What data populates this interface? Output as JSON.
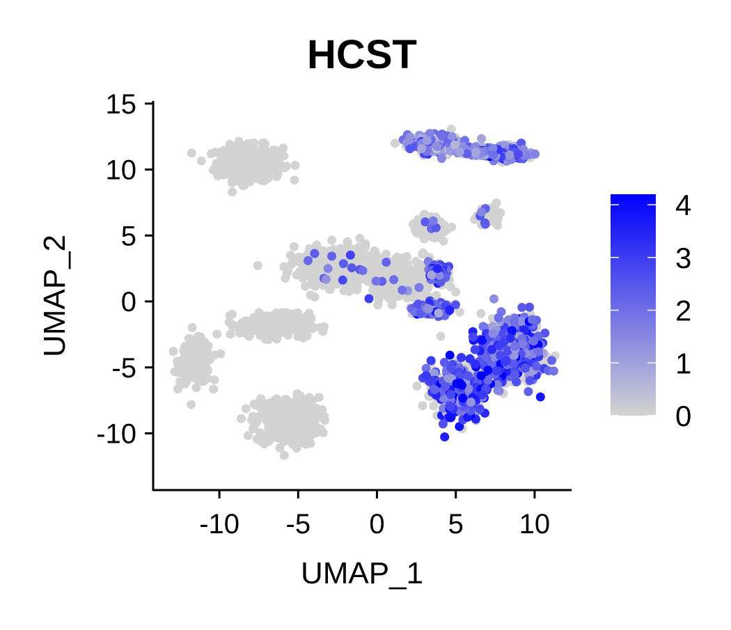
{
  "chart_data": {
    "type": "scatter",
    "title": "HCST",
    "xlabel": "UMAP_1",
    "ylabel": "UMAP_2",
    "xlim": [
      -14.2,
      12.3
    ],
    "ylim": [
      -14.3,
      15.2
    ],
    "xticks": [
      -10,
      -5,
      0,
      5,
      10
    ],
    "xtick_labels": [
      "-10",
      "-5",
      "0",
      "5",
      "10"
    ],
    "yticks": [
      -10,
      -5,
      0,
      5,
      10,
      15
    ],
    "ytick_labels": [
      "-10",
      "-5",
      "0",
      "5",
      "10",
      "15"
    ],
    "grid": false,
    "legend": {
      "placement": "right",
      "type": "colorbar",
      "min": 0,
      "max": 4.2,
      "ticks": [
        0,
        1,
        2,
        3,
        4
      ],
      "tick_labels": [
        "0",
        "1",
        "2",
        "3",
        "4"
      ]
    },
    "colors": {
      "low": "#d3d3d3",
      "high": "#0000ff"
    },
    "clusters": [
      {
        "center": [
          -8.1,
          10.5
        ],
        "spread": [
          2.1,
          1.3
        ],
        "expression": 0.0
      },
      {
        "center": [
          -11.5,
          -4.6
        ],
        "spread": [
          1.0,
          1.6
        ],
        "expression": 0.0
      },
      {
        "center": [
          -5.7,
          -9.1
        ],
        "spread": [
          2.0,
          1.8
        ],
        "expression": 0.0
      },
      {
        "center": [
          -2.3,
          2.6
        ],
        "spread": [
          2.8,
          1.5
        ],
        "expression": 0.05
      },
      {
        "center": [
          -6.5,
          -1.8
        ],
        "spread": [
          2.2,
          0.9
        ],
        "expression": 0.0
      },
      {
        "center": [
          1.8,
          1.6
        ],
        "spread": [
          2.2,
          1.4
        ],
        "expression": 0.05
      },
      {
        "center": [
          3.3,
          5.6
        ],
        "spread": [
          0.8,
          0.8
        ],
        "expression": 0.05
      },
      {
        "center": [
          3.6,
          11.9
        ],
        "spread": [
          1.6,
          0.7
        ],
        "expression": 1.6
      },
      {
        "center": [
          8.4,
          11.2
        ],
        "spread": [
          1.2,
          0.6
        ],
        "expression": 2.0
      },
      {
        "center": [
          6.3,
          11.4
        ],
        "spread": [
          0.9,
          0.3
        ],
        "expression": 1.4
      },
      {
        "center": [
          7.0,
          6.4
        ],
        "spread": [
          0.6,
          0.5
        ],
        "expression": 0.3
      },
      {
        "center": [
          3.9,
          2.2
        ],
        "spread": [
          0.5,
          0.6
        ],
        "expression": 2.3
      },
      {
        "center": [
          3.5,
          -0.6
        ],
        "spread": [
          1.2,
          0.5
        ],
        "expression": 2.0
      },
      {
        "center": [
          8.6,
          -3.6
        ],
        "spread": [
          1.9,
          2.5
        ],
        "expression": 2.5
      },
      {
        "center": [
          5.3,
          -6.7
        ],
        "spread": [
          1.8,
          2.1
        ],
        "expression": 2.7
      }
    ]
  }
}
